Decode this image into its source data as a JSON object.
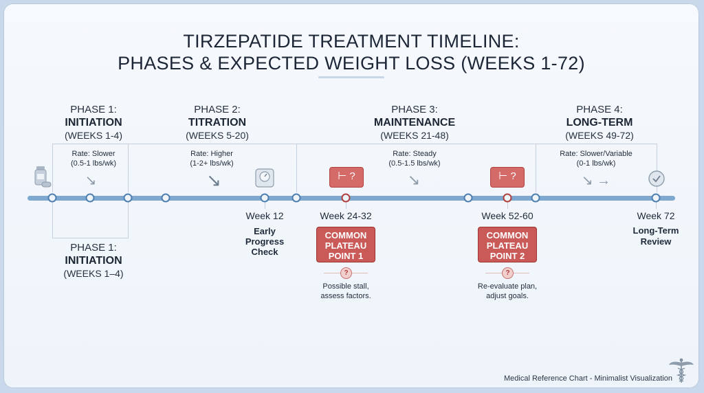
{
  "title_line1": "TIRZEPATIDE TREATMENT TIMELINE:",
  "title_line2": "PHASES & EXPECTED WEIGHT LOSS (WEEKS 1-72)",
  "phases": [
    {
      "label": "PHASE 1:",
      "name": "INITIATION",
      "weeks": "(WEEKS 1-4)",
      "rate": "Rate: Slower",
      "rate_value": "(0.5-1 lbs/wk)",
      "trend": "↘"
    },
    {
      "label": "PHASE 2:",
      "name": "TITRATION",
      "weeks": "(WEEKS 5-20)",
      "rate": "Rate: Higher",
      "rate_value": "(1-2+ lbs/wk)",
      "trend": "↘"
    },
    {
      "label": "PHASE 3:",
      "name": "MAINTENANCE",
      "weeks": "(WEEKS 21-48)",
      "rate": "Rate: Steady",
      "rate_value": "(0.5-1.5 lbs/wk)",
      "trend": "↘"
    },
    {
      "label": "PHASE 4:",
      "name": "LONG-TERM",
      "weeks": "(WEEKS 49-72)",
      "rate": "Rate: Slower/Variable",
      "rate_value": "(0-1 lbs/wk)",
      "trend": "↘ →"
    }
  ],
  "phase1_repeat": {
    "label": "PHASE 1:",
    "name": "INITIATION",
    "weeks": "(WEEKS 1–4)"
  },
  "milestones": {
    "week12": {
      "week": "Week 12",
      "line1": "Early",
      "line2": "Progress",
      "line3": "Check"
    },
    "week72": {
      "week": "Week 72",
      "line1": "Long-Term",
      "line2": "Review"
    }
  },
  "plateaus": [
    {
      "week": "Week 24-32",
      "line1": "COMMON",
      "line2": "PLATEAU",
      "line3": "POINT 1",
      "q": "?",
      "note1": "Possible stall,",
      "note2": "assess factors.",
      "icon": "⊢ ?"
    },
    {
      "week": "Week 52-60",
      "line1": "COMMON",
      "line2": "PLATEAU",
      "line3": "POINT 2",
      "q": "?",
      "note1": "Re-evaluate plan,",
      "note2": "adjust goals.",
      "icon": "⊢ ?"
    }
  ],
  "icons": {
    "start": "medication-icon",
    "scale": "scale-icon",
    "check": "checkmark-icon",
    "logo": "caduceus-icon"
  },
  "footer": "Medical Reference Chart - Minimalist Visualization"
}
